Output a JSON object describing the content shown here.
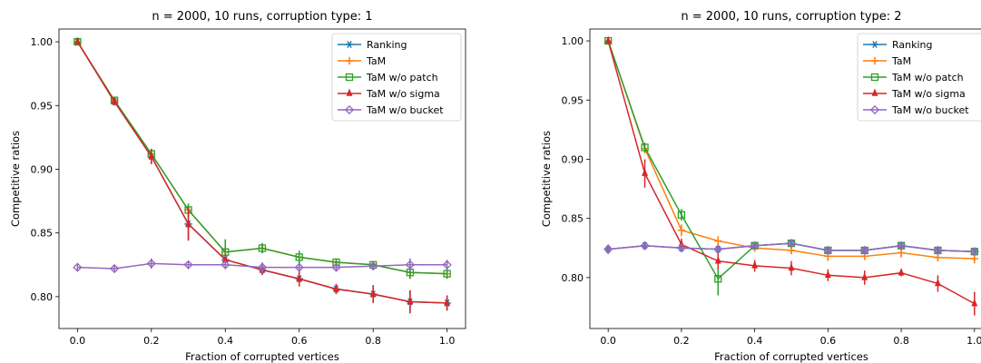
{
  "chart_data": [
    {
      "type": "line",
      "title": "n = 2000, 10 runs, corruption type: 1",
      "xlabel": "Fraction of corrupted vertices",
      "ylabel": "Competitive ratios",
      "xlim": [
        -0.05,
        1.05
      ],
      "ylim": [
        0.775,
        1.01
      ],
      "xticks": [
        0.0,
        0.2,
        0.4,
        0.6,
        0.8,
        1.0
      ],
      "xtick_labels": [
        "0.0",
        "0.2",
        "0.4",
        "0.6",
        "0.8",
        "1.0"
      ],
      "yticks": [
        0.8,
        0.85,
        0.9,
        0.95,
        1.0
      ],
      "ytick_labels": [
        "0.80",
        "0.85",
        "0.90",
        "0.95",
        "1.00"
      ],
      "legend_position": "top-right",
      "x": [
        0.0,
        0.1,
        0.2,
        0.3,
        0.4,
        0.5,
        0.6,
        0.7,
        0.8,
        0.9,
        1.0
      ],
      "series": [
        {
          "name": "Ranking",
          "color": "#1f77b4",
          "marker": "asterisk",
          "values": [
            1.0,
            0.953,
            0.91,
            0.857,
            0.829,
            0.821,
            0.814,
            0.806,
            0.802,
            0.796,
            0.795
          ],
          "errors": [
            0,
            0.003,
            0.006,
            0.013,
            0.005,
            0.004,
            0.006,
            0.004,
            0.007,
            0.009,
            0.006
          ]
        },
        {
          "name": "TaM",
          "color": "#ff7f0e",
          "marker": "plus",
          "values": [
            1.0,
            0.954,
            0.912,
            0.868,
            0.835,
            0.838,
            0.831,
            0.827,
            0.825,
            0.819,
            0.818
          ],
          "errors": [
            0,
            0.003,
            0.004,
            0.005,
            0.01,
            0.004,
            0.005,
            0.002,
            0.002,
            0.005,
            0.004
          ]
        },
        {
          "name": "TaM w/o patch",
          "color": "#2ca02c",
          "marker": "square",
          "values": [
            1.0,
            0.954,
            0.912,
            0.868,
            0.835,
            0.838,
            0.831,
            0.827,
            0.825,
            0.819,
            0.818
          ],
          "errors": [
            0,
            0.003,
            0.004,
            0.005,
            0.01,
            0.004,
            0.005,
            0.002,
            0.002,
            0.005,
            0.004
          ]
        },
        {
          "name": "TaM w/o sigma",
          "color": "#d62728",
          "marker": "tri",
          "values": [
            1.0,
            0.953,
            0.91,
            0.857,
            0.829,
            0.821,
            0.814,
            0.806,
            0.802,
            0.796,
            0.795
          ],
          "errors": [
            0,
            0.003,
            0.006,
            0.013,
            0.005,
            0.004,
            0.006,
            0.004,
            0.007,
            0.009,
            0.006
          ]
        },
        {
          "name": "TaM w/o bucket",
          "color": "#9467bd",
          "marker": "diamond",
          "values": [
            0.823,
            0.822,
            0.826,
            0.825,
            0.825,
            0.823,
            0.823,
            0.823,
            0.824,
            0.825,
            0.825
          ],
          "errors": [
            0.003,
            0.003,
            0.004,
            0.003,
            0.003,
            0.004,
            0.003,
            0.003,
            0.003,
            0.005,
            0.004
          ]
        }
      ]
    },
    {
      "type": "line",
      "title": "n = 2000, 10 runs, corruption type: 2",
      "xlabel": "Fraction of corrupted vertices",
      "ylabel": "Competitive ratios",
      "xlim": [
        -0.05,
        1.05
      ],
      "ylim": [
        0.757,
        1.01
      ],
      "xticks": [
        0.0,
        0.2,
        0.4,
        0.6,
        0.8,
        1.0
      ],
      "xtick_labels": [
        "0.0",
        "0.2",
        "0.4",
        "0.6",
        "0.8",
        "1.0"
      ],
      "yticks": [
        0.8,
        0.85,
        0.9,
        0.95,
        1.0
      ],
      "ytick_labels": [
        "0.80",
        "0.85",
        "0.90",
        "0.95",
        "1.00"
      ],
      "legend_position": "top-right",
      "x": [
        0.0,
        0.1,
        0.2,
        0.3,
        0.4,
        0.5,
        0.6,
        0.7,
        0.8,
        0.9,
        1.0
      ],
      "series": [
        {
          "name": "Ranking",
          "color": "#1f77b4",
          "marker": "asterisk",
          "values": [
            0.824,
            0.827,
            0.825,
            0.824,
            0.827,
            0.829,
            0.823,
            0.823,
            0.827,
            0.823,
            0.822
          ],
          "errors": [
            0.004,
            0.003,
            0.003,
            0.003,
            0.002,
            0.003,
            0.002,
            0.003,
            0.003,
            0.003,
            0.002
          ]
        },
        {
          "name": "TaM",
          "color": "#ff7f0e",
          "marker": "plus",
          "values": [
            1.0,
            0.909,
            0.84,
            0.831,
            0.825,
            0.823,
            0.818,
            0.818,
            0.821,
            0.817,
            0.816
          ],
          "errors": [
            0,
            0.004,
            0.005,
            0.004,
            0.003,
            0.003,
            0.004,
            0.003,
            0.004,
            0.003,
            0.004
          ]
        },
        {
          "name": "TaM w/o patch",
          "color": "#2ca02c",
          "marker": "square",
          "values": [
            1.0,
            0.91,
            0.853,
            0.799,
            0.827,
            0.829,
            0.823,
            0.823,
            0.827,
            0.823,
            0.822
          ],
          "errors": [
            0,
            0.004,
            0.005,
            0.014,
            0.003,
            0.003,
            0.002,
            0.003,
            0.003,
            0.003,
            0.002
          ]
        },
        {
          "name": "TaM w/o sigma",
          "color": "#d62728",
          "marker": "tri",
          "values": [
            1.0,
            0.888,
            0.828,
            0.814,
            0.81,
            0.808,
            0.802,
            0.8,
            0.804,
            0.795,
            0.778
          ],
          "errors": [
            0,
            0.012,
            0.005,
            0.007,
            0.005,
            0.006,
            0.005,
            0.006,
            0.003,
            0.007,
            0.01
          ]
        },
        {
          "name": "TaM w/o bucket",
          "color": "#9467bd",
          "marker": "diamond",
          "values": [
            0.824,
            0.827,
            0.825,
            0.824,
            0.827,
            0.829,
            0.823,
            0.823,
            0.827,
            0.823,
            0.822
          ],
          "errors": [
            0.004,
            0.003,
            0.003,
            0.003,
            0.002,
            0.003,
            0.002,
            0.003,
            0.003,
            0.003,
            0.002
          ]
        }
      ]
    }
  ]
}
